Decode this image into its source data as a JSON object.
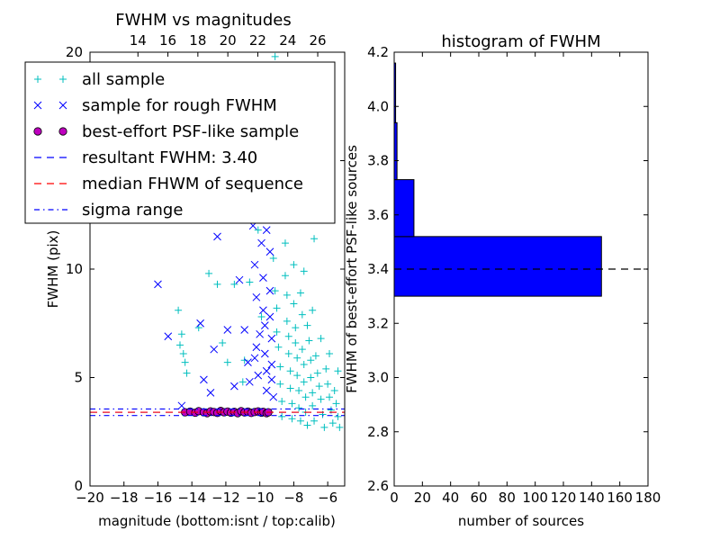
{
  "chart_data": [
    {
      "type": "scatter",
      "title": "FWHM vs magnitudes",
      "xlabel": "magnitude (bottom:isnt / top:calib)",
      "ylabel": "FWHM (pix)",
      "xlim": [
        -20,
        -5
      ],
      "ylim": [
        0,
        20
      ],
      "xticks": [
        "-20",
        "-18",
        "-16",
        "-14",
        "-12",
        "-10",
        "-8",
        "-6"
      ],
      "yticks": [
        "0",
        "5",
        "10",
        "15",
        "20"
      ],
      "top_axis": {
        "xlim": [
          10.8,
          27.8
        ],
        "ticks": [
          "14",
          "16",
          "18",
          "20",
          "22",
          "24",
          "26"
        ]
      },
      "legend_position": "top-left",
      "legend": [
        {
          "label": "all sample",
          "marker": "+",
          "color": "#00bfbf"
        },
        {
          "label": "sample for rough FWHM",
          "marker": "x",
          "color": "#0000ff"
        },
        {
          "label": "best-effort PSF-like sample",
          "marker": "o",
          "color": "#bf00bf"
        },
        {
          "label": "resultant FWHM: 3.40",
          "line": "dashed",
          "color": "#0000ff"
        },
        {
          "label": "median FHWM of sequence",
          "line": "dashed",
          "color": "#ff0000"
        },
        {
          "label": "sigma range",
          "line": "dashdot",
          "color": "#0000ff"
        }
      ],
      "reference_lines": [
        {
          "name": "resultant FWHM",
          "y": 3.4,
          "color": "#0000ff",
          "style": "dashed"
        },
        {
          "name": "median FHWM of sequence",
          "y": 3.4,
          "color": "#ff0000",
          "style": "dashed"
        },
        {
          "name": "sigma upper",
          "y": 3.55,
          "color": "#0000ff",
          "style": "dashdot"
        },
        {
          "name": "sigma lower",
          "y": 3.25,
          "color": "#0000ff",
          "style": "dashdot"
        }
      ],
      "series": [
        {
          "name": "all sample",
          "marker": "+",
          "color": "#00bfbf",
          "points": [
            [
              -14.8,
              8.1
            ],
            [
              -14.6,
              7.0
            ],
            [
              -14.7,
              6.5
            ],
            [
              -14.5,
              6.1
            ],
            [
              -14.4,
              5.7
            ],
            [
              -14.3,
              5.2
            ],
            [
              -13.6,
              7.3
            ],
            [
              -13.0,
              9.8
            ],
            [
              -12.5,
              9.3
            ],
            [
              -12.2,
              6.6
            ],
            [
              -11.9,
              5.7
            ],
            [
              -11.5,
              9.3
            ],
            [
              -11.0,
              4.8
            ],
            [
              -10.9,
              5.8
            ],
            [
              -10.6,
              9.4
            ],
            [
              -10.3,
              14.6
            ],
            [
              -10.1,
              11.8
            ],
            [
              -9.9,
              7.8
            ],
            [
              -9.6,
              18.9
            ],
            [
              -9.4,
              16.2
            ],
            [
              -9.3,
              12.6
            ],
            [
              -9.2,
              10.5
            ],
            [
              -9.1,
              9.0
            ],
            [
              -9.0,
              8.2
            ],
            [
              -9.0,
              7.1
            ],
            [
              -8.9,
              6.4
            ],
            [
              -8.8,
              5.5
            ],
            [
              -8.8,
              4.7
            ],
            [
              -8.7,
              3.9
            ],
            [
              -8.7,
              3.2
            ],
            [
              -8.6,
              17.1
            ],
            [
              -8.6,
              13.4
            ],
            [
              -8.5,
              11.2
            ],
            [
              -8.5,
              9.7
            ],
            [
              -8.4,
              8.8
            ],
            [
              -8.4,
              7.6
            ],
            [
              -8.3,
              6.9
            ],
            [
              -8.3,
              6.1
            ],
            [
              -8.2,
              5.3
            ],
            [
              -8.2,
              4.5
            ],
            [
              -8.1,
              3.8
            ],
            [
              -8.1,
              3.1
            ],
            [
              -8.0,
              10.2
            ],
            [
              -8.0,
              8.4
            ],
            [
              -7.9,
              7.3
            ],
            [
              -7.9,
              6.6
            ],
            [
              -7.8,
              5.9
            ],
            [
              -7.8,
              5.1
            ],
            [
              -7.7,
              4.4
            ],
            [
              -7.7,
              3.6
            ],
            [
              -7.6,
              3.0
            ],
            [
              -7.6,
              8.9
            ],
            [
              -7.5,
              7.9
            ],
            [
              -7.5,
              6.3
            ],
            [
              -7.4,
              5.6
            ],
            [
              -7.4,
              4.8
            ],
            [
              -7.3,
              4.1
            ],
            [
              -7.3,
              3.4
            ],
            [
              -7.2,
              2.8
            ],
            [
              -7.2,
              7.4
            ],
            [
              -7.1,
              6.7
            ],
            [
              -7.0,
              5.8
            ],
            [
              -7.0,
              5.0
            ],
            [
              -6.9,
              4.3
            ],
            [
              -6.9,
              3.7
            ],
            [
              -6.8,
              3.0
            ],
            [
              -6.8,
              11.4
            ],
            [
              -6.7,
              6.0
            ],
            [
              -6.6,
              5.2
            ],
            [
              -6.5,
              4.6
            ],
            [
              -6.4,
              4.0
            ],
            [
              -6.3,
              3.3
            ],
            [
              -6.2,
              2.7
            ],
            [
              -6.1,
              5.4
            ],
            [
              -6.0,
              4.7
            ],
            [
              -5.9,
              4.1
            ],
            [
              -5.8,
              3.5
            ],
            [
              -5.7,
              2.9
            ],
            [
              -5.6,
              4.4
            ],
            [
              -5.5,
              3.8
            ],
            [
              -5.4,
              3.2
            ],
            [
              -5.3,
              2.7
            ],
            [
              -7.9,
              12.3
            ],
            [
              -8.5,
              15.7
            ],
            [
              -9.1,
              19.8
            ],
            [
              -7.4,
              9.9
            ],
            [
              -6.9,
              8.1
            ],
            [
              -6.4,
              6.8
            ],
            [
              -5.9,
              6.1
            ],
            [
              -5.4,
              5.3
            ]
          ]
        },
        {
          "name": "sample for rough FWHM",
          "marker": "x",
          "color": "#0000ff",
          "points": [
            [
              -16.0,
              9.3
            ],
            [
              -15.4,
              6.9
            ],
            [
              -14.6,
              3.7
            ],
            [
              -13.5,
              7.5
            ],
            [
              -13.3,
              4.9
            ],
            [
              -12.9,
              4.3
            ],
            [
              -12.7,
              6.3
            ],
            [
              -12.5,
              11.5
            ],
            [
              -11.9,
              7.2
            ],
            [
              -11.5,
              4.6
            ],
            [
              -11.2,
              9.5
            ],
            [
              -10.9,
              7.2
            ],
            [
              -10.7,
              5.7
            ],
            [
              -10.6,
              4.8
            ],
            [
              -10.4,
              12.0
            ],
            [
              -10.3,
              10.2
            ],
            [
              -10.2,
              8.7
            ],
            [
              -10.2,
              6.4
            ],
            [
              -10.1,
              5.1
            ],
            [
              -10.0,
              14.7
            ],
            [
              -9.9,
              13.5
            ],
            [
              -9.9,
              11.2
            ],
            [
              -9.8,
              9.6
            ],
            [
              -9.8,
              8.1
            ],
            [
              -9.7,
              7.4
            ],
            [
              -9.7,
              6.1
            ],
            [
              -9.6,
              5.3
            ],
            [
              -9.6,
              4.4
            ],
            [
              -9.5,
              15.9
            ],
            [
              -9.5,
              12.4
            ],
            [
              -9.4,
              10.8
            ],
            [
              -9.4,
              9.0
            ],
            [
              -9.4,
              7.8
            ],
            [
              -9.3,
              6.8
            ],
            [
              -9.3,
              5.6
            ],
            [
              -9.3,
              4.9
            ],
            [
              -9.2,
              4.1
            ],
            [
              -10.4,
              13.3
            ],
            [
              -9.8,
              16.8
            ],
            [
              -9.6,
              11.8
            ],
            [
              -10.0,
              7.0
            ],
            [
              -10.3,
              5.9
            ]
          ]
        },
        {
          "name": "best-effort PSF-like sample",
          "marker": "o",
          "color": "#bf00bf",
          "points": [
            [
              -14.4,
              3.4
            ],
            [
              -14.1,
              3.43
            ],
            [
              -13.8,
              3.38
            ],
            [
              -13.6,
              3.45
            ],
            [
              -13.3,
              3.4
            ],
            [
              -13.1,
              3.36
            ],
            [
              -12.9,
              3.44
            ],
            [
              -12.7,
              3.41
            ],
            [
              -12.5,
              3.37
            ],
            [
              -12.3,
              3.46
            ],
            [
              -12.1,
              3.4
            ],
            [
              -11.9,
              3.43
            ],
            [
              -11.7,
              3.38
            ],
            [
              -11.5,
              3.42
            ],
            [
              -11.3,
              3.36
            ],
            [
              -11.1,
              3.45
            ],
            [
              -10.9,
              3.39
            ],
            [
              -10.7,
              3.43
            ],
            [
              -10.5,
              3.37
            ],
            [
              -10.3,
              3.41
            ],
            [
              -10.1,
              3.44
            ],
            [
              -9.9,
              3.38
            ],
            [
              -9.8,
              3.42
            ],
            [
              -9.6,
              3.36
            ],
            [
              -9.5,
              3.4
            ]
          ]
        }
      ]
    },
    {
      "type": "bar",
      "orientation": "horizontal",
      "title": "histogram of FWHM",
      "xlabel": "number of sources",
      "ylabel": "FWHM of best-effort PSF-like sources",
      "xlim": [
        0,
        180
      ],
      "ylim": [
        2.6,
        4.2
      ],
      "xticks": [
        "0",
        "20",
        "40",
        "60",
        "80",
        "100",
        "120",
        "140",
        "160",
        "180"
      ],
      "yticks": [
        "2.6",
        "2.8",
        "3.0",
        "3.2",
        "3.4",
        "3.6",
        "3.8",
        "4.0",
        "4.2"
      ],
      "bar_color": "#0000ff",
      "bins": [
        {
          "from": 3.3,
          "to": 3.52,
          "count": 147
        },
        {
          "from": 3.52,
          "to": 3.73,
          "count": 14
        },
        {
          "from": 3.73,
          "to": 3.94,
          "count": 2
        },
        {
          "from": 3.94,
          "to": 4.16,
          "count": 1
        }
      ],
      "reference_lines": [
        {
          "y": 3.4,
          "color": "#000000",
          "style": "dashed"
        }
      ]
    }
  ]
}
